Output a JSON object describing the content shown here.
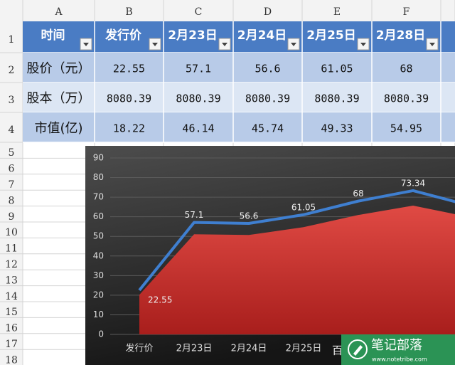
{
  "spreadsheet": {
    "column_letters": [
      "A",
      "B",
      "C",
      "D",
      "E",
      "F"
    ],
    "row_numbers": [
      "1",
      "2",
      "3",
      "4",
      "5",
      "6",
      "7",
      "8",
      "9",
      "10",
      "11",
      "12",
      "13",
      "14",
      "15",
      "16",
      "17",
      "18"
    ],
    "table": {
      "header": [
        "时间",
        "发行价",
        "2月23日",
        "2月24日",
        "2月25日",
        "2月28日"
      ],
      "rows": [
        [
          "股价（元）",
          "22.55",
          "57.1",
          "56.6",
          "61.05",
          "68"
        ],
        [
          "股本（万）",
          "8080.39",
          "8080.39",
          "8080.39",
          "8080.39",
          "8080.39"
        ],
        [
          "市值(亿)",
          "18.22",
          "46.14",
          "45.74",
          "49.33",
          "54.95"
        ]
      ]
    }
  },
  "chart_data": {
    "type": "line",
    "categories": [
      "发行价",
      "2月23日",
      "2月24日",
      "2月25日",
      null,
      null,
      null
    ],
    "series": [
      {
        "color": "#c9302c",
        "fill": "area",
        "values": [
          20.2,
          51.1,
          50.7,
          54.7,
          60.9,
          65.7,
          60
        ]
      },
      {
        "color": "#3f7fd0",
        "values": [
          22.55,
          57.1,
          56.6,
          61.05,
          68,
          73.34,
          66
        ],
        "data_labels": true
      }
    ],
    "ylim": [
      0,
      90
    ],
    "yticks": [
      0,
      10,
      20,
      30,
      40,
      50,
      60,
      70,
      80,
      90
    ],
    "grid": true
  },
  "watermark": {
    "text": "百",
    "brand": "笔记部落",
    "url": "www.notetribe.com"
  }
}
